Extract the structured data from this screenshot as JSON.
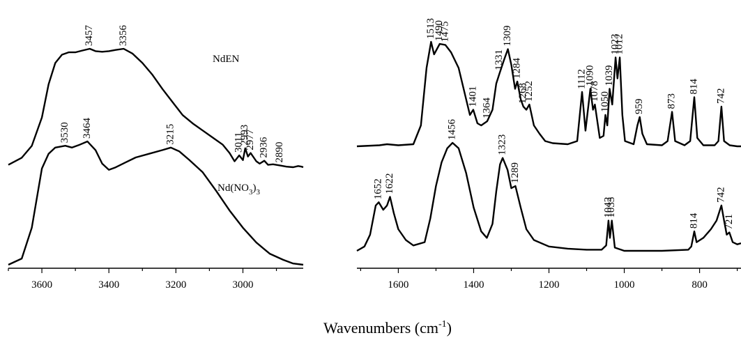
{
  "chart_data": [
    {
      "type": "line",
      "panel": "left",
      "x_unit": "cm-1",
      "xlim": [
        3700,
        2820
      ],
      "x_reversed": true,
      "xticks": [
        "3600",
        "3400",
        "3200",
        "3000"
      ],
      "series": [
        {
          "name": "NdEN",
          "peak_labels": [
            "3457",
            "3356",
            "3011",
            "2993",
            "2977",
            "2936",
            "2890"
          ],
          "points": [
            [
              3700,
              0.02
            ],
            [
              3660,
              0.08
            ],
            [
              3630,
              0.18
            ],
            [
              3600,
              0.42
            ],
            [
              3580,
              0.7
            ],
            [
              3560,
              0.88
            ],
            [
              3540,
              0.95
            ],
            [
              3520,
              0.97
            ],
            [
              3500,
              0.97
            ],
            [
              3480,
              0.985
            ],
            [
              3457,
              1.0
            ],
            [
              3440,
              0.98
            ],
            [
              3420,
              0.975
            ],
            [
              3400,
              0.98
            ],
            [
              3380,
              0.99
            ],
            [
              3356,
              1.0
            ],
            [
              3330,
              0.96
            ],
            [
              3300,
              0.88
            ],
            [
              3270,
              0.78
            ],
            [
              3240,
              0.66
            ],
            [
              3210,
              0.55
            ],
            [
              3180,
              0.44
            ],
            [
              3150,
              0.37
            ],
            [
              3120,
              0.31
            ],
            [
              3090,
              0.25
            ],
            [
              3060,
              0.19
            ],
            [
              3040,
              0.12
            ],
            [
              3025,
              0.05
            ],
            [
              3011,
              0.1
            ],
            [
              3000,
              0.06
            ],
            [
              2993,
              0.16
            ],
            [
              2985,
              0.09
            ],
            [
              2977,
              0.12
            ],
            [
              2960,
              0.05
            ],
            [
              2950,
              0.03
            ],
            [
              2936,
              0.055
            ],
            [
              2925,
              0.02
            ],
            [
              2910,
              0.025
            ],
            [
              2890,
              0.015
            ],
            [
              2870,
              0.005
            ],
            [
              2850,
              0.0
            ],
            [
              2835,
              0.01
            ],
            [
              2825,
              0.005
            ],
            [
              2820,
              0.0
            ]
          ]
        },
        {
          "name": "Nd(NO3)3",
          "peak_labels": [
            "3530",
            "3464",
            "3215"
          ],
          "points": [
            [
              3700,
              0.0
            ],
            [
              3660,
              0.05
            ],
            [
              3630,
              0.3
            ],
            [
              3600,
              0.78
            ],
            [
              3580,
              0.9
            ],
            [
              3560,
              0.95
            ],
            [
              3540,
              0.96
            ],
            [
              3530,
              0.965
            ],
            [
              3510,
              0.95
            ],
            [
              3490,
              0.97
            ],
            [
              3464,
              1.0
            ],
            [
              3440,
              0.93
            ],
            [
              3420,
              0.82
            ],
            [
              3400,
              0.77
            ],
            [
              3380,
              0.79
            ],
            [
              3350,
              0.83
            ],
            [
              3320,
              0.87
            ],
            [
              3280,
              0.9
            ],
            [
              3240,
              0.93
            ],
            [
              3215,
              0.95
            ],
            [
              3190,
              0.92
            ],
            [
              3160,
              0.85
            ],
            [
              3120,
              0.75
            ],
            [
              3080,
              0.6
            ],
            [
              3040,
              0.44
            ],
            [
              3000,
              0.3
            ],
            [
              2960,
              0.18
            ],
            [
              2920,
              0.09
            ],
            [
              2880,
              0.04
            ],
            [
              2850,
              0.01
            ],
            [
              2820,
              0.0
            ]
          ]
        }
      ]
    },
    {
      "type": "line",
      "panel": "right",
      "x_unit": "cm-1",
      "xlim": [
        1710,
        690
      ],
      "x_reversed": true,
      "xticks": [
        "1600",
        "1400",
        "1200",
        "1000",
        "800"
      ],
      "series": [
        {
          "name": "NdEN",
          "peak_labels": [
            "1513",
            "1490",
            "1475",
            "1401",
            "1364",
            "1331",
            "1309",
            "1284",
            "1268",
            "1252",
            "1112",
            "1090",
            "1078",
            "1050",
            "1039",
            "1023",
            "1012",
            "959",
            "873",
            "814",
            "742"
          ],
          "points": [
            [
              1710,
              0.0
            ],
            [
              1650,
              0.01
            ],
            [
              1630,
              0.02
            ],
            [
              1600,
              0.01
            ],
            [
              1560,
              0.02
            ],
            [
              1540,
              0.2
            ],
            [
              1525,
              0.75
            ],
            [
              1513,
              1.0
            ],
            [
              1505,
              0.88
            ],
            [
              1490,
              0.98
            ],
            [
              1475,
              0.97
            ],
            [
              1460,
              0.9
            ],
            [
              1440,
              0.75
            ],
            [
              1420,
              0.45
            ],
            [
              1410,
              0.3
            ],
            [
              1401,
              0.35
            ],
            [
              1390,
              0.22
            ],
            [
              1380,
              0.2
            ],
            [
              1364,
              0.24
            ],
            [
              1350,
              0.35
            ],
            [
              1340,
              0.6
            ],
            [
              1331,
              0.7
            ],
            [
              1320,
              0.82
            ],
            [
              1309,
              0.93
            ],
            [
              1300,
              0.78
            ],
            [
              1290,
              0.55
            ],
            [
              1284,
              0.62
            ],
            [
              1275,
              0.45
            ],
            [
              1268,
              0.38
            ],
            [
              1260,
              0.35
            ],
            [
              1252,
              0.4
            ],
            [
              1240,
              0.2
            ],
            [
              1225,
              0.12
            ],
            [
              1210,
              0.05
            ],
            [
              1190,
              0.03
            ],
            [
              1150,
              0.02
            ],
            [
              1125,
              0.05
            ],
            [
              1112,
              0.52
            ],
            [
              1103,
              0.15
            ],
            [
              1090,
              0.55
            ],
            [
              1083,
              0.35
            ],
            [
              1078,
              0.4
            ],
            [
              1065,
              0.08
            ],
            [
              1055,
              0.1
            ],
            [
              1050,
              0.3
            ],
            [
              1045,
              0.2
            ],
            [
              1039,
              0.55
            ],
            [
              1032,
              0.4
            ],
            [
              1023,
              0.85
            ],
            [
              1018,
              0.65
            ],
            [
              1012,
              0.85
            ],
            [
              1005,
              0.3
            ],
            [
              998,
              0.05
            ],
            [
              975,
              0.02
            ],
            [
              965,
              0.2
            ],
            [
              959,
              0.28
            ],
            [
              952,
              0.12
            ],
            [
              940,
              0.02
            ],
            [
              900,
              0.01
            ],
            [
              885,
              0.05
            ],
            [
              873,
              0.33
            ],
            [
              865,
              0.05
            ],
            [
              840,
              0.01
            ],
            [
              825,
              0.05
            ],
            [
              814,
              0.47
            ],
            [
              806,
              0.08
            ],
            [
              790,
              0.01
            ],
            [
              760,
              0.01
            ],
            [
              750,
              0.05
            ],
            [
              742,
              0.38
            ],
            [
              735,
              0.05
            ],
            [
              720,
              0.01
            ],
            [
              700,
              0.0
            ],
            [
              690,
              0.0
            ]
          ]
        },
        {
          "name": "Nd(NO3)3",
          "peak_labels": [
            "1652",
            "1622",
            "1456",
            "1323",
            "1289",
            "1042",
            "1033",
            "814",
            "742",
            "721"
          ],
          "points": [
            [
              1710,
              0.0
            ],
            [
              1690,
              0.04
            ],
            [
              1675,
              0.15
            ],
            [
              1660,
              0.42
            ],
            [
              1652,
              0.45
            ],
            [
              1640,
              0.38
            ],
            [
              1630,
              0.42
            ],
            [
              1622,
              0.5
            ],
            [
              1612,
              0.35
            ],
            [
              1600,
              0.2
            ],
            [
              1580,
              0.1
            ],
            [
              1560,
              0.05
            ],
            [
              1530,
              0.08
            ],
            [
              1515,
              0.3
            ],
            [
              1500,
              0.6
            ],
            [
              1485,
              0.82
            ],
            [
              1470,
              0.95
            ],
            [
              1456,
              1.0
            ],
            [
              1440,
              0.95
            ],
            [
              1420,
              0.72
            ],
            [
              1400,
              0.4
            ],
            [
              1380,
              0.18
            ],
            [
              1365,
              0.12
            ],
            [
              1350,
              0.25
            ],
            [
              1340,
              0.55
            ],
            [
              1330,
              0.8
            ],
            [
              1323,
              0.86
            ],
            [
              1310,
              0.75
            ],
            [
              1300,
              0.58
            ],
            [
              1289,
              0.6
            ],
            [
              1275,
              0.4
            ],
            [
              1260,
              0.2
            ],
            [
              1240,
              0.1
            ],
            [
              1200,
              0.04
            ],
            [
              1150,
              0.02
            ],
            [
              1100,
              0.01
            ],
            [
              1060,
              0.01
            ],
            [
              1048,
              0.05
            ],
            [
              1042,
              0.28
            ],
            [
              1038,
              0.12
            ],
            [
              1033,
              0.28
            ],
            [
              1025,
              0.03
            ],
            [
              1000,
              0.0
            ],
            [
              900,
              0.0
            ],
            [
              830,
              0.01
            ],
            [
              822,
              0.04
            ],
            [
              814,
              0.18
            ],
            [
              808,
              0.08
            ],
            [
              790,
              0.12
            ],
            [
              770,
              0.2
            ],
            [
              755,
              0.28
            ],
            [
              742,
              0.42
            ],
            [
              735,
              0.28
            ],
            [
              728,
              0.15
            ],
            [
              721,
              0.17
            ],
            [
              712,
              0.08
            ],
            [
              700,
              0.06
            ],
            [
              690,
              0.07
            ]
          ]
        }
      ]
    }
  ],
  "series_labels": {
    "nden": "NdEN",
    "ndno3_prefix": "Nd(NO",
    "ndno3_sub": "3",
    "ndno3_suffix": ")",
    "ndno3_sub2": "3"
  },
  "xlabel": {
    "main": "Wavenumbers (cm",
    "sup": "-1",
    "close": ")"
  }
}
